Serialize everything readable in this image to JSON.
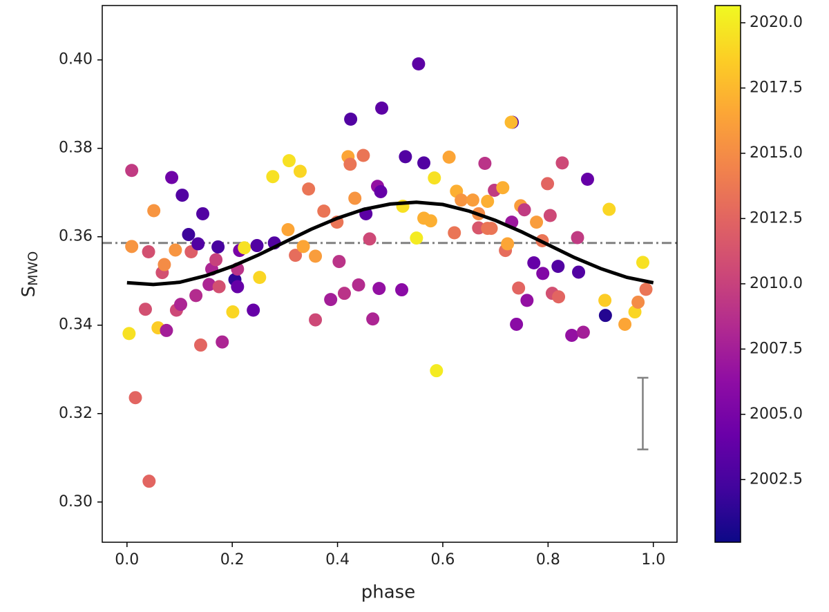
{
  "chart_data": {
    "type": "scatter",
    "colormap": "plasma",
    "xlabel": "phase",
    "ylabel": {
      "text": "S",
      "sub": "MWO"
    },
    "xlim": [
      -0.047,
      1.045
    ],
    "ylim": [
      0.2909,
      0.4123
    ],
    "xticks": [
      {
        "value": 0,
        "label": "0.0"
      },
      {
        "value": 0.2,
        "label": "0.2"
      },
      {
        "value": 0.4,
        "label": "0.4"
      },
      {
        "value": 0.6,
        "label": "0.6"
      },
      {
        "value": 0.8,
        "label": "0.8"
      },
      {
        "value": 1,
        "label": "1.0"
      }
    ],
    "yticks": [
      {
        "value": 0.3,
        "label": "0.30"
      },
      0.32,
      0.34,
      0.36,
      0.38,
      {
        "value": 0.4,
        "label": "0.40"
      }
    ],
    "clim": [
      2000.1,
      2020.66
    ],
    "cticks": [
      {
        "value": 2002.5,
        "label": "2002.5"
      },
      {
        "value": 2005,
        "label": "2005.0"
      },
      {
        "value": 2007.5,
        "label": "2007.5"
      },
      {
        "value": 2010,
        "label": "2010.0"
      },
      {
        "value": 2012.5,
        "label": "2012.5"
      },
      {
        "value": 2015,
        "label": "2015.0"
      },
      {
        "value": 2017.5,
        "label": "2017.5"
      },
      {
        "value": 2020,
        "label": "2020.0"
      }
    ],
    "x": [
      0.004,
      0.009,
      0.009,
      0.016,
      0.042,
      0.035,
      0.041,
      0.051,
      0.059,
      0.067,
      0.071,
      0.075,
      0.085,
      0.092,
      0.094,
      0.102,
      0.105,
      0.117,
      0.122,
      0.131,
      0.14,
      0.144,
      0.135,
      0.156,
      0.161,
      0.169,
      0.173,
      0.175,
      0.181,
      0.205,
      0.21,
      0.201,
      0.21,
      0.214,
      0.223,
      0.24,
      0.247,
      0.252,
      0.277,
      0.28,
      0.306,
      0.308,
      0.32,
      0.329,
      0.335,
      0.345,
      0.358,
      0.358,
      0.374,
      0.399,
      0.403,
      0.387,
      0.413,
      0.42,
      0.424,
      0.425,
      0.433,
      0.44,
      0.449,
      0.454,
      0.461,
      0.467,
      0.476,
      0.482,
      0.484,
      0.479,
      0.522,
      0.524,
      0.529,
      0.55,
      0.554,
      0.564,
      0.564,
      0.577,
      0.584,
      0.588,
      0.612,
      0.622,
      0.626,
      0.635,
      0.657,
      0.668,
      0.668,
      0.68,
      0.685,
      0.685,
      0.692,
      0.698,
      0.714,
      0.719,
      0.723,
      0.731,
      0.732,
      0.73,
      0.74,
      0.744,
      0.748,
      0.755,
      0.76,
      0.773,
      0.778,
      0.789,
      0.79,
      0.799,
      0.804,
      0.808,
      0.819,
      0.82,
      0.827,
      0.845,
      0.856,
      0.858,
      0.867,
      0.875,
      0.909,
      0.908,
      0.916,
      0.946,
      0.965,
      0.971,
      0.98,
      0.986
    ],
    "y": [
      0.3381,
      0.375,
      0.3578,
      0.3236,
      0.3047,
      0.3436,
      0.3566,
      0.3659,
      0.3394,
      0.3519,
      0.3537,
      0.3388,
      0.3734,
      0.357,
      0.3434,
      0.3447,
      0.3694,
      0.3605,
      0.3566,
      0.3467,
      0.3355,
      0.3652,
      0.3584,
      0.3492,
      0.3527,
      0.3548,
      0.3577,
      0.3487,
      0.3362,
      0.3503,
      0.3487,
      0.343,
      0.3527,
      0.3569,
      0.3575,
      0.3434,
      0.358,
      0.3508,
      0.3736,
      0.3586,
      0.3616,
      0.3772,
      0.3558,
      0.3748,
      0.3578,
      0.3708,
      0.3556,
      0.3412,
      0.3658,
      0.3633,
      0.3544,
      0.3458,
      0.3472,
      0.3781,
      0.3764,
      0.3866,
      0.3687,
      0.3491,
      0.3784,
      0.3652,
      0.3595,
      0.3414,
      0.3714,
      0.3702,
      0.3891,
      0.3483,
      0.348,
      0.3669,
      0.3781,
      0.3597,
      0.3991,
      0.3642,
      0.3767,
      0.3636,
      0.3733,
      0.3297,
      0.378,
      0.3609,
      0.3703,
      0.3683,
      0.3683,
      0.3652,
      0.362,
      0.3766,
      0.368,
      0.3619,
      0.3619,
      0.3705,
      0.3711,
      0.3569,
      0.3584,
      0.3633,
      0.3859,
      0.3859,
      0.3402,
      0.3484,
      0.367,
      0.3661,
      0.3456,
      0.3541,
      0.3633,
      0.3591,
      0.3517,
      0.372,
      0.3648,
      0.3472,
      0.3533,
      0.3464,
      0.3767,
      0.3377,
      0.3598,
      0.352,
      0.3384,
      0.373,
      0.3422,
      0.3456,
      0.3662,
      0.3402,
      0.343,
      0.3452,
      0.3542,
      0.3481
    ],
    "c": [
      2019.5,
      2009.5,
      2015.5,
      2012.5,
      2012.5,
      2011,
      2011,
      2015.5,
      2018.5,
      2011,
      2015,
      2007.5,
      2004.5,
      2015.5,
      2010.5,
      2008,
      2003,
      2002,
      2012,
      2008.5,
      2012.5,
      2003,
      2003,
      2008,
      2008,
      2010,
      2002.5,
      2011,
      2008,
      2001.5,
      2004,
      2019,
      2009,
      2005,
      2019.5,
      2004,
      2003,
      2019,
      2019.5,
      2003,
      2016.5,
      2019.5,
      2013,
      2019,
      2016.5,
      2013.5,
      2016,
      2010.5,
      2013.5,
      2013.5,
      2009,
      2007.5,
      2009,
      2016.5,
      2013.5,
      2003,
      2015.5,
      2008.5,
      2013.5,
      2003.5,
      2010.5,
      2008,
      2006.5,
      2004,
      2003.5,
      2006.5,
      2006,
      2019.5,
      2003,
      2020,
      2003.5,
      2017,
      2003,
      2017,
      2019.5,
      2020,
      2016.5,
      2013.5,
      2017,
      2015.5,
      2016,
      2015,
      2011.5,
      2009,
      2017,
      2013.5,
      2013.5,
      2009.5,
      2017,
      2013,
      2016.5,
      2007,
      2003,
      2017.5,
      2006,
      2012.5,
      2016,
      2009.5,
      2006.5,
      2004,
      2016,
      2013.5,
      2005.5,
      2012.5,
      2010.5,
      2011,
      2003,
      2012.5,
      2010.5,
      2006.5,
      2009.5,
      2003,
      2007.5,
      2004,
      2001,
      2018.5,
      2019,
      2016.5,
      2019,
      2015,
      2019.5,
      2013.5
    ],
    "fit": {
      "color": "#000000",
      "x": [
        0,
        0.05,
        0.1,
        0.15,
        0.2,
        0.25,
        0.3,
        0.35,
        0.4,
        0.45,
        0.5,
        0.55,
        0.6,
        0.65,
        0.7,
        0.75,
        0.8,
        0.85,
        0.9,
        0.95,
        1.0
      ],
      "y": [
        0.3496,
        0.3492,
        0.3497,
        0.3512,
        0.3533,
        0.3559,
        0.3588,
        0.3617,
        0.3642,
        0.3662,
        0.3674,
        0.3678,
        0.3673,
        0.3658,
        0.3637,
        0.3611,
        0.3582,
        0.3553,
        0.3528,
        0.3508,
        0.3496
      ]
    },
    "hline": 0.3586,
    "hline_color": "#808080",
    "errorbar": {
      "x": 0.98,
      "y": 0.32,
      "err": 0.0081,
      "color": "#808080"
    }
  }
}
